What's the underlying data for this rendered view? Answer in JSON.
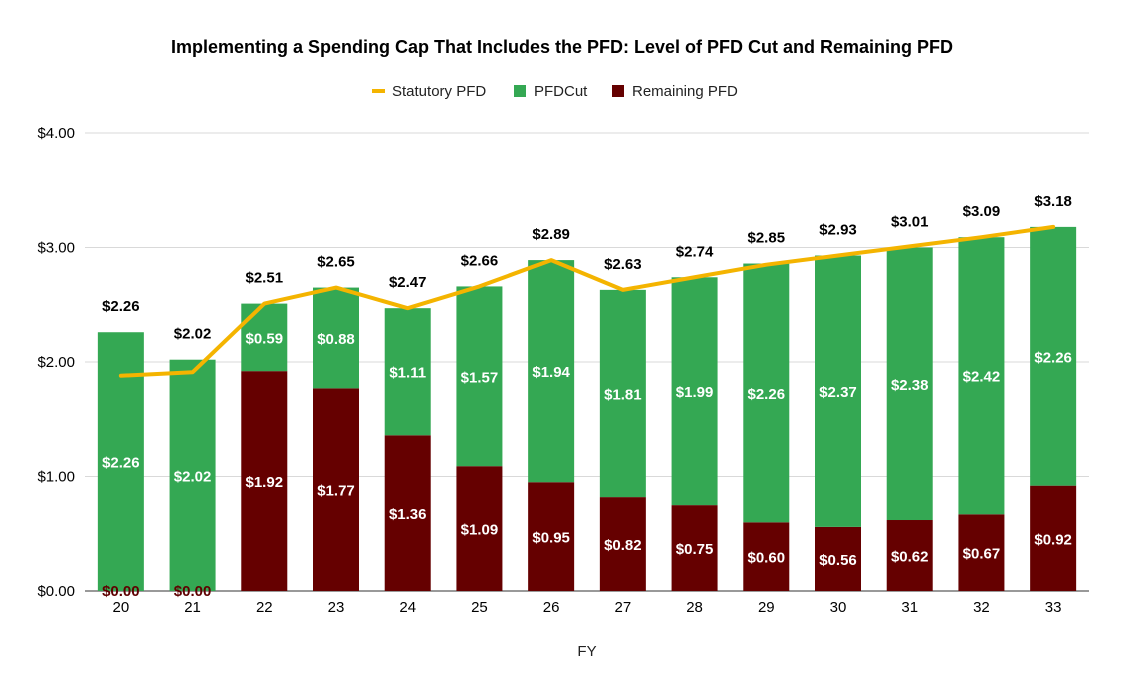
{
  "chart_data": {
    "type": "bar",
    "stacked": true,
    "title": "Implementing a Spending Cap That Includes the PFD: Level of PFD Cut and Remaining PFD",
    "xlabel": "FY",
    "ylabel": "",
    "ylim": [
      0,
      4
    ],
    "yticks": [
      "$0.00",
      "$1.00",
      "$2.00",
      "$3.00",
      "$4.00"
    ],
    "grid": true,
    "legend_position": "top",
    "categories": [
      "20",
      "21",
      "22",
      "23",
      "24",
      "25",
      "26",
      "27",
      "28",
      "29",
      "30",
      "31",
      "32",
      "33"
    ],
    "series": [
      {
        "name": "Remaining PFD",
        "kind": "bar",
        "color": "#650000",
        "values": [
          0.0,
          0.0,
          1.92,
          1.77,
          1.36,
          1.09,
          0.95,
          0.82,
          0.75,
          0.6,
          0.56,
          0.62,
          0.67,
          0.92
        ],
        "labels": [
          "$0.00",
          "$0.00",
          "$1.92",
          "$1.77",
          "$1.36",
          "$1.09",
          "$0.95",
          "$0.82",
          "$0.75",
          "$0.60",
          "$0.56",
          "$0.62",
          "$0.67",
          "$0.92"
        ]
      },
      {
        "name": "PFDCut",
        "kind": "bar",
        "color": "#34a853",
        "values": [
          2.26,
          2.02,
          0.59,
          0.88,
          1.11,
          1.57,
          1.94,
          1.81,
          1.99,
          2.26,
          2.37,
          2.38,
          2.42,
          2.26
        ],
        "labels": [
          "$2.26",
          "$2.02",
          "$0.59",
          "$0.88",
          "$1.11",
          "$1.57",
          "$1.94",
          "$1.81",
          "$1.99",
          "$2.26",
          "$2.37",
          "$2.38",
          "$2.42",
          "$2.26"
        ]
      },
      {
        "name": "Statutory PFD",
        "kind": "line",
        "color": "#f4b400",
        "values": [
          1.88,
          1.91,
          2.51,
          2.65,
          2.47,
          2.66,
          2.89,
          2.63,
          2.74,
          2.85,
          2.93,
          3.01,
          3.09,
          3.18
        ]
      }
    ],
    "total_labels": [
      "$2.26",
      "$2.02",
      "$2.51",
      "$2.65",
      "$2.47",
      "$2.66",
      "$2.89",
      "$2.63",
      "$2.74",
      "$2.85",
      "$2.93",
      "$3.01",
      "$3.09",
      "$3.18"
    ],
    "legend": [
      {
        "name": "Statutory PFD",
        "symbol": "line",
        "color": "#f4b400"
      },
      {
        "name": "PFDCut",
        "symbol": "square",
        "color": "#34a853"
      },
      {
        "name": "Remaining PFD",
        "symbol": "square",
        "color": "#650000"
      }
    ]
  }
}
